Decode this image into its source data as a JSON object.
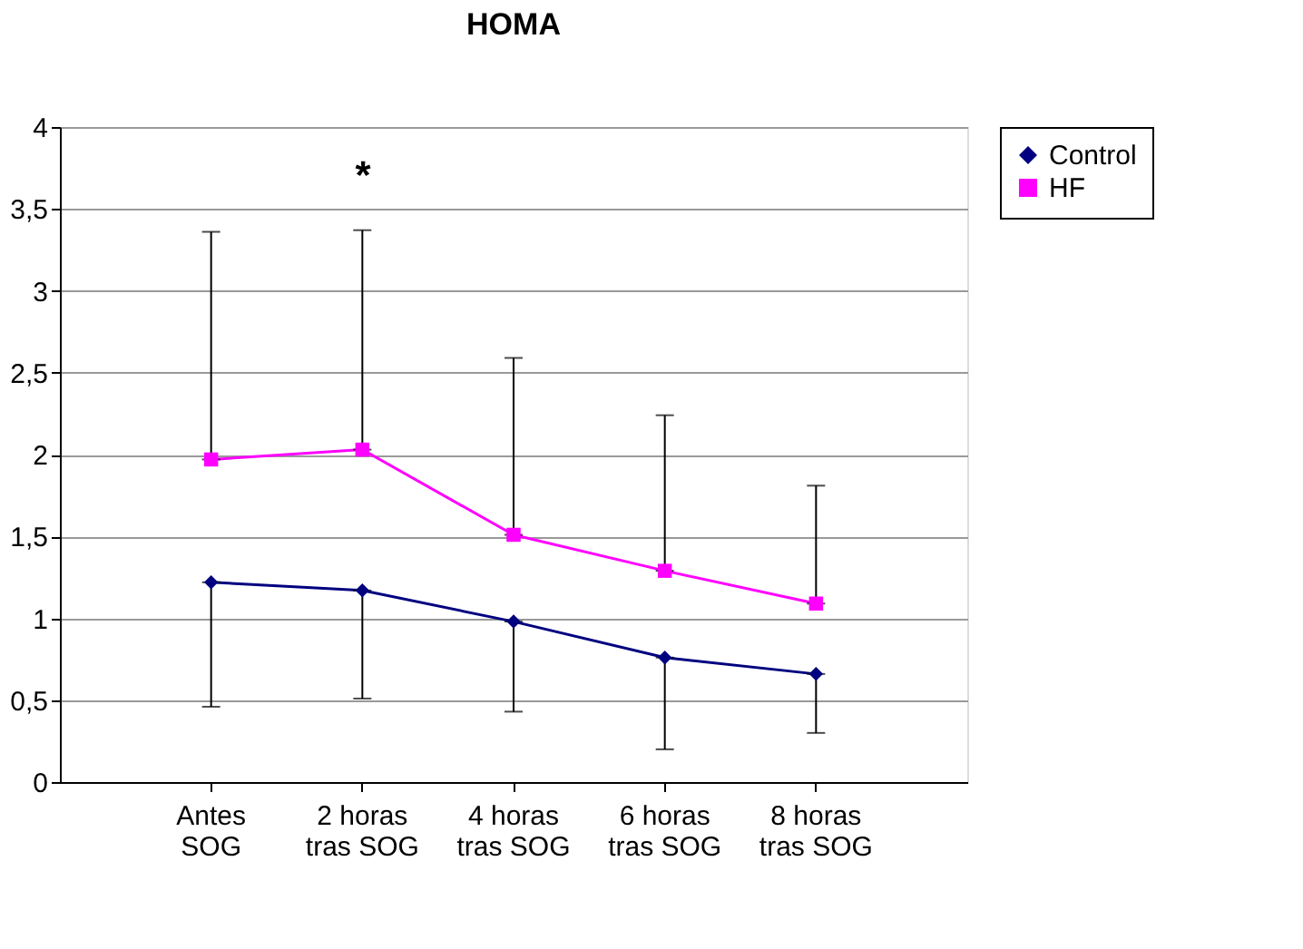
{
  "chart_data": {
    "type": "line",
    "title": "HOMA",
    "categories": [
      "Antes\nSOG",
      "2 horas\ntras SOG",
      "4 horas\ntras SOG",
      "6 horas\ntras SOG",
      "8 horas\ntras SOG"
    ],
    "series": [
      {
        "name": "Control",
        "color": "#000080",
        "marker": "diamond",
        "values": [
          1.22,
          1.17,
          0.98,
          0.76,
          0.66
        ],
        "errors": [
          [
            0.46,
            1.22
          ],
          [
            0.51,
            1.17
          ],
          [
            0.43,
            0.98
          ],
          [
            0.2,
            0.76
          ],
          [
            0.3,
            0.66
          ]
        ]
      },
      {
        "name": "HF",
        "color": "#ff00ff",
        "marker": "square",
        "values": [
          1.97,
          2.03,
          1.51,
          1.29,
          1.09
        ],
        "errors": [
          [
            1.97,
            3.36
          ],
          [
            2.03,
            3.37
          ],
          [
            1.51,
            2.59
          ],
          [
            1.29,
            2.24
          ],
          [
            1.09,
            1.81
          ]
        ]
      }
    ],
    "ylim": [
      0,
      4
    ],
    "yticks": [
      0,
      {
        "value": 0.5,
        "label": "0,5"
      },
      1,
      {
        "value": 1.5,
        "label": "1,5"
      },
      2,
      {
        "value": 2.5,
        "label": "2,5"
      },
      3,
      {
        "value": 3.5,
        "label": "3,5"
      },
      4
    ],
    "grid": "y",
    "legend": "right",
    "line_style": "solid",
    "annotations": [
      "*"
    ]
  }
}
